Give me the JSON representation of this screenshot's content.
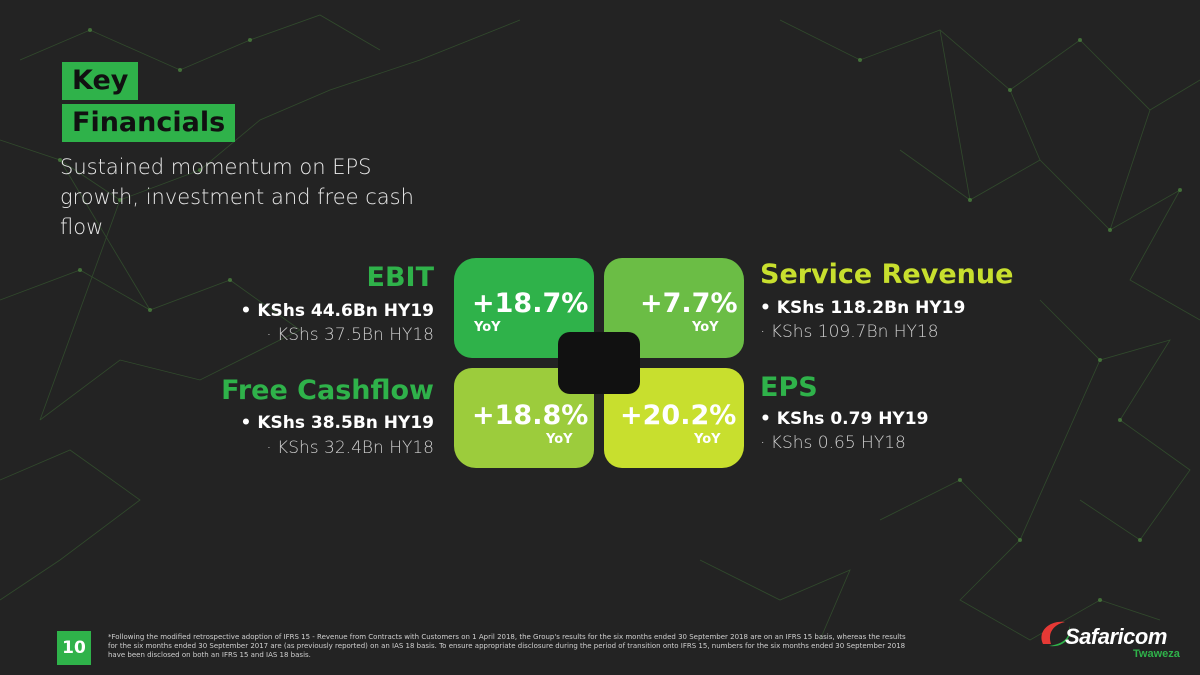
{
  "title": {
    "line1": "Key",
    "line2": "Financials"
  },
  "subtitle": "Sustained momentum on EPS growth, investment and free cash flow",
  "colors": {
    "dark_green": "#2fb24a",
    "mid_green": "#6bbd45",
    "lime": "#9ccc3c",
    "yellow_green": "#c8df2e",
    "background": "#232323"
  },
  "metrics": {
    "ebit": {
      "title": "EBIT",
      "current": "• KShs 44.6Bn HY19",
      "previous": "· KShs 37.5Bn HY18",
      "growth": "+18.7%",
      "yoy": "YoY"
    },
    "service_revenue": {
      "title": "Service Revenue",
      "current": "• KShs 118.2Bn HY19",
      "previous": "· KShs 109.7Bn HY18",
      "growth": "+7.7%",
      "yoy": "YoY"
    },
    "free_cashflow": {
      "title": "Free Cashflow",
      "current": "• KShs 38.5Bn HY19",
      "previous": "· KShs 32.4Bn HY18",
      "growth": "+18.8%",
      "yoy": "YoY"
    },
    "eps": {
      "title": "EPS",
      "current": "• KShs 0.79 HY19",
      "previous": "· KShs 0.65 HY18",
      "growth": "+20.2%",
      "yoy": "YoY"
    }
  },
  "page_number": "10",
  "footnote": "*Following the modified retrospective adoption of IFRS 15 - Revenue from Contracts with Customers on 1 April 2018, the Group's results for the six months ended 30 September 2018 are on an IFRS 15 basis, whereas the results for the six months ended 30 September 2017 are (as previously reported) on an IAS 18 basis. To ensure appropriate disclosure during the period of transition onto IFRS 15, numbers for the six months ended 30 September 2018 have been disclosed on both an IFRS 15 and IAS 18 basis.",
  "brand": {
    "name": "Safaricom",
    "tagline": "Twaweza"
  }
}
